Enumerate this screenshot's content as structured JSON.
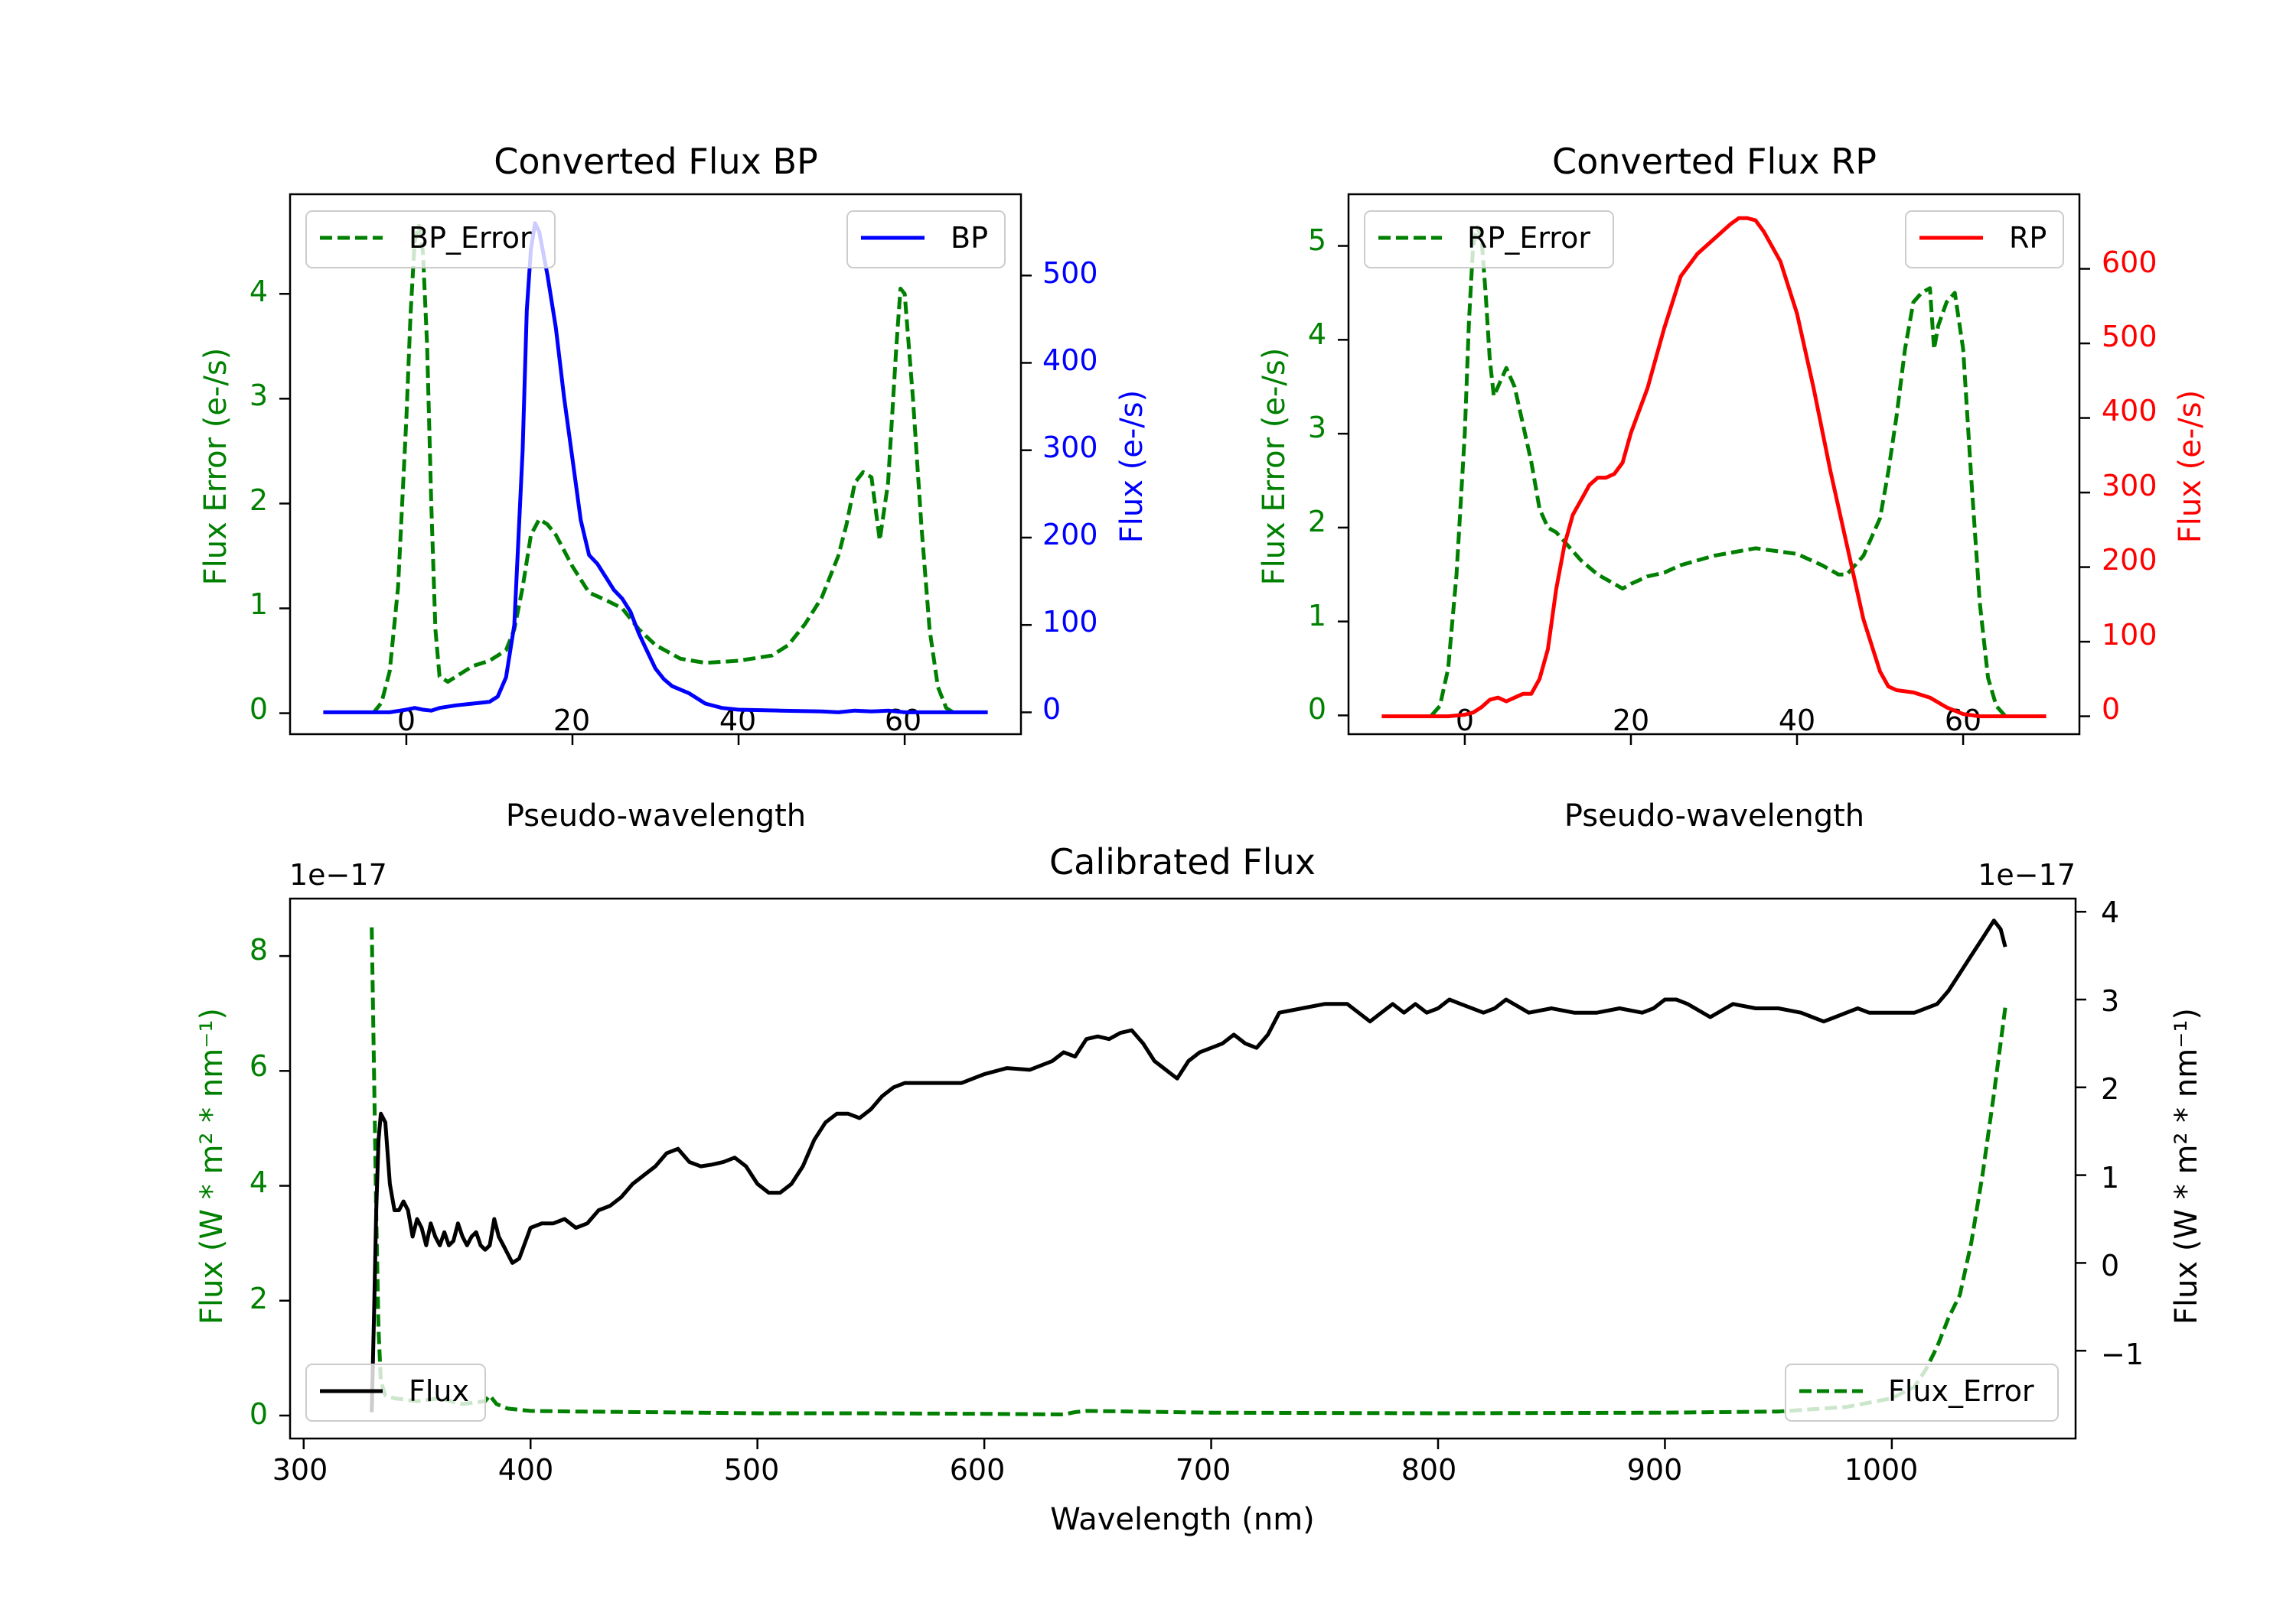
{
  "colors": {
    "green": "#008000",
    "blue": "#0000ff",
    "red": "#ff0000",
    "black": "#000000"
  },
  "chart_data": [
    {
      "id": "bp",
      "type": "line",
      "title": "Converted Flux BP",
      "xlabel": "Pseudo-wavelength",
      "ylabel_left": "Flux Error (e-/s)",
      "ylabel_right": "Flux (e-/s)",
      "xlim": [
        -14,
        74
      ],
      "ylim_left": [
        -0.2,
        4.95
      ],
      "ylim_right": [
        -25,
        593
      ],
      "xticks": [
        "0",
        "20",
        "40",
        "60"
      ],
      "yticks_left": [
        "0",
        "1",
        "2",
        "3",
        "4"
      ],
      "yticks_right": [
        "0",
        "100",
        "200",
        "300",
        "400",
        "500"
      ],
      "series": [
        {
          "name": "BP_Error",
          "axis": "left",
          "style": "dashed",
          "color": "#008000",
          "x": [
            -4,
            -3,
            -2,
            -1,
            0,
            0.5,
            1,
            1.5,
            2,
            2.5,
            3,
            3.5,
            4,
            5,
            6,
            7,
            8,
            10,
            12,
            13,
            14,
            15,
            16,
            17,
            18,
            20,
            22,
            24,
            26,
            28,
            30,
            33,
            36,
            40,
            44,
            46,
            48,
            50,
            52,
            53,
            54,
            55,
            56,
            57,
            58,
            59,
            59.5,
            60,
            61,
            62,
            63,
            64,
            65,
            66
          ],
          "y": [
            0,
            0.1,
            0.4,
            1.2,
            2.8,
            3.8,
            4.5,
            4.65,
            4.4,
            3.5,
            2.0,
            0.8,
            0.35,
            0.3,
            0.35,
            0.4,
            0.45,
            0.5,
            0.6,
            0.8,
            1.2,
            1.7,
            1.85,
            1.8,
            1.7,
            1.4,
            1.15,
            1.08,
            1.0,
            0.8,
            0.65,
            0.52,
            0.48,
            0.5,
            0.55,
            0.65,
            0.85,
            1.1,
            1.5,
            1.8,
            2.2,
            2.3,
            2.25,
            1.65,
            2.2,
            3.5,
            4.05,
            4.0,
            3.0,
            1.8,
            0.8,
            0.25,
            0.05,
            0
          ]
        },
        {
          "name": "BP",
          "axis": "right",
          "style": "solid",
          "color": "#0000ff",
          "x": [
            -10,
            -4,
            -2,
            0,
            1,
            2,
            3,
            4,
            6,
            8,
            10,
            11,
            12,
            13,
            14,
            14.5,
            15,
            15.5,
            16,
            17,
            18,
            19,
            20,
            21,
            22,
            23,
            24,
            25,
            26,
            27,
            28,
            29,
            30,
            31,
            32,
            34,
            36,
            38,
            40,
            45,
            50,
            52,
            54,
            56,
            58,
            60,
            64,
            70
          ],
          "y": [
            0,
            0,
            0,
            3,
            5,
            3,
            2,
            5,
            8,
            10,
            12,
            18,
            40,
            100,
            300,
            460,
            530,
            560,
            550,
            500,
            440,
            360,
            290,
            220,
            180,
            170,
            155,
            140,
            130,
            115,
            90,
            70,
            50,
            38,
            30,
            22,
            10,
            5,
            3,
            2,
            1,
            0,
            2,
            1,
            2,
            0,
            0,
            0
          ]
        }
      ],
      "legend": [
        {
          "label": "BP_Error",
          "position": "upper-left"
        },
        {
          "label": "BP",
          "position": "upper-right"
        }
      ]
    },
    {
      "id": "rp",
      "type": "line",
      "title": "Converted Flux RP",
      "xlabel": "Pseudo-wavelength",
      "ylabel_left": "Flux Error (e-/s)",
      "ylabel_right": "Flux (e-/s)",
      "xlim": [
        -14,
        74
      ],
      "ylim_left": [
        -0.2,
        5.55
      ],
      "ylim_right": [
        -24,
        700
      ],
      "xticks": [
        "0",
        "20",
        "40",
        "60"
      ],
      "yticks_left": [
        "0",
        "1",
        "2",
        "3",
        "4",
        "5"
      ],
      "yticks_right": [
        "0",
        "100",
        "200",
        "300",
        "400",
        "500",
        "600"
      ],
      "series": [
        {
          "name": "RP_Error",
          "axis": "left",
          "style": "dashed",
          "color": "#008000",
          "x": [
            -4,
            -3,
            -2,
            -1,
            0,
            0.5,
            1,
            1.5,
            2,
            2.5,
            3,
            3.5,
            4,
            5,
            6,
            7,
            8,
            9,
            10,
            11,
            12,
            14,
            16,
            18,
            19,
            20,
            22,
            24,
            26,
            30,
            35,
            40,
            43,
            45,
            46,
            48,
            50,
            51,
            52,
            53,
            54,
            55,
            56,
            56.5,
            57,
            58,
            59,
            60,
            61,
            62,
            63,
            64,
            65
          ],
          "y": [
            0,
            0.1,
            0.5,
            1.5,
            3.0,
            4.2,
            5.0,
            5.2,
            5.1,
            4.5,
            3.8,
            3.4,
            3.5,
            3.7,
            3.5,
            3.1,
            2.7,
            2.2,
            2.0,
            1.95,
            1.85,
            1.65,
            1.5,
            1.4,
            1.35,
            1.4,
            1.48,
            1.52,
            1.6,
            1.7,
            1.78,
            1.72,
            1.6,
            1.5,
            1.5,
            1.7,
            2.1,
            2.6,
            3.2,
            3.9,
            4.4,
            4.5,
            4.55,
            3.9,
            4.15,
            4.4,
            4.5,
            3.9,
            2.5,
            1.2,
            0.4,
            0.1,
            0
          ]
        },
        {
          "name": "RP",
          "axis": "right",
          "style": "solid",
          "color": "#ff0000",
          "x": [
            -10,
            -4,
            -2,
            0,
            1,
            2,
            3,
            4,
            5,
            6,
            7,
            8,
            9,
            10,
            11,
            12,
            13,
            14,
            15,
            16,
            17,
            18,
            19,
            20,
            22,
            24,
            26,
            28,
            30,
            32,
            33,
            34,
            35,
            36,
            38,
            40,
            42,
            44,
            46,
            48,
            50,
            51,
            52,
            54,
            56,
            58,
            60,
            62,
            64,
            70
          ],
          "y": [
            0,
            0,
            0,
            2,
            5,
            12,
            22,
            25,
            20,
            25,
            30,
            30,
            50,
            90,
            170,
            230,
            270,
            290,
            310,
            320,
            320,
            325,
            340,
            380,
            440,
            520,
            590,
            620,
            640,
            660,
            668,
            668,
            665,
            650,
            610,
            540,
            440,
            330,
            230,
            130,
            60,
            40,
            35,
            32,
            25,
            12,
            3,
            0,
            0,
            0
          ]
        }
      ],
      "legend": [
        {
          "label": "RP_Error",
          "position": "upper-left"
        },
        {
          "label": "RP",
          "position": "upper-right"
        }
      ]
    },
    {
      "id": "cal",
      "type": "line",
      "title": "Calibrated Flux",
      "xlabel": "Wavelength (nm)",
      "ylabel_left": "Flux (W * m² * nm⁻¹)",
      "ylabel_right": "Flux (W * m² * nm⁻¹)",
      "offset_left": "1e−17",
      "offset_right": "1e−17",
      "xlim": [
        294,
        1081
      ],
      "ylim_left": [
        -0.4,
        9.0
      ],
      "ylim_right": [
        -2.0,
        4.15
      ],
      "xticks": [
        "300",
        "400",
        "500",
        "600",
        "700",
        "800",
        "900",
        "1000"
      ],
      "yticks_left": [
        "0",
        "2",
        "4",
        "6",
        "8"
      ],
      "yticks_right": [
        "−1",
        "0",
        "1",
        "2",
        "3",
        "4"
      ],
      "series": [
        {
          "name": "Flux_Error",
          "axis": "left",
          "style": "dashed",
          "color": "#008000",
          "x": [
            330,
            331,
            332,
            333,
            334,
            336,
            340,
            350,
            360,
            370,
            380,
            382,
            385,
            390,
            400,
            420,
            450,
            500,
            550,
            600,
            635,
            640,
            645,
            700,
            800,
            900,
            950,
            980,
            1000,
            1010,
            1015,
            1020,
            1025,
            1030,
            1035,
            1040,
            1045,
            1050
          ],
          "y": [
            8.5,
            6.0,
            3.5,
            1.5,
            0.6,
            0.35,
            0.3,
            0.25,
            0.3,
            0.2,
            0.25,
            0.35,
            0.2,
            0.12,
            0.08,
            0.07,
            0.06,
            0.04,
            0.04,
            0.03,
            0.02,
            0.06,
            0.08,
            0.05,
            0.04,
            0.05,
            0.07,
            0.15,
            0.3,
            0.5,
            0.8,
            1.2,
            1.7,
            2.1,
            3.0,
            4.2,
            5.6,
            7.1
          ]
        },
        {
          "name": "Flux",
          "axis": "right",
          "style": "solid",
          "color": "#000000",
          "x": [
            330,
            331,
            332,
            333,
            334,
            336,
            338,
            340,
            342,
            344,
            346,
            348,
            350,
            352,
            354,
            356,
            358,
            360,
            362,
            364,
            366,
            368,
            370,
            372,
            374,
            376,
            378,
            380,
            382,
            384,
            386,
            388,
            390,
            392,
            395,
            400,
            405,
            410,
            415,
            420,
            425,
            430,
            435,
            440,
            445,
            450,
            455,
            460,
            465,
            470,
            475,
            480,
            485,
            490,
            495,
            500,
            505,
            510,
            515,
            520,
            525,
            530,
            535,
            540,
            545,
            550,
            555,
            560,
            565,
            570,
            580,
            590,
            600,
            610,
            620,
            630,
            635,
            640,
            645,
            650,
            655,
            660,
            665,
            670,
            675,
            680,
            685,
            690,
            695,
            700,
            705,
            710,
            715,
            720,
            725,
            730,
            740,
            750,
            760,
            765,
            770,
            775,
            780,
            785,
            790,
            795,
            800,
            805,
            810,
            820,
            825,
            830,
            840,
            850,
            860,
            870,
            880,
            890,
            895,
            900,
            905,
            910,
            920,
            930,
            940,
            950,
            960,
            965,
            970,
            975,
            980,
            985,
            990,
            1000,
            1010,
            1020,
            1025,
            1030,
            1035,
            1040,
            1045,
            1048,
            1050
          ],
          "y": [
            -1.7,
            -0.6,
            0.6,
            1.4,
            1.7,
            1.6,
            0.9,
            0.6,
            0.6,
            0.7,
            0.6,
            0.3,
            0.5,
            0.4,
            0.2,
            0.45,
            0.3,
            0.2,
            0.35,
            0.2,
            0.25,
            0.45,
            0.3,
            0.2,
            0.3,
            0.35,
            0.2,
            0.15,
            0.2,
            0.5,
            0.3,
            0.2,
            0.1,
            0.0,
            0.05,
            0.4,
            0.45,
            0.45,
            0.5,
            0.4,
            0.45,
            0.6,
            0.65,
            0.75,
            0.9,
            1.0,
            1.1,
            1.25,
            1.3,
            1.15,
            1.1,
            1.12,
            1.15,
            1.2,
            1.1,
            0.9,
            0.8,
            0.8,
            0.9,
            1.1,
            1.4,
            1.6,
            1.7,
            1.7,
            1.65,
            1.75,
            1.9,
            2.0,
            2.05,
            2.05,
            2.05,
            2.05,
            2.15,
            2.22,
            2.2,
            2.3,
            2.4,
            2.35,
            2.55,
            2.58,
            2.55,
            2.62,
            2.65,
            2.5,
            2.3,
            2.2,
            2.1,
            2.3,
            2.4,
            2.45,
            2.5,
            2.6,
            2.5,
            2.45,
            2.6,
            2.85,
            2.9,
            2.95,
            2.95,
            2.85,
            2.75,
            2.85,
            2.95,
            2.85,
            2.95,
            2.85,
            2.9,
            3.0,
            2.95,
            2.85,
            2.9,
            3.0,
            2.85,
            2.9,
            2.85,
            2.85,
            2.9,
            2.85,
            2.9,
            3.0,
            3.0,
            2.95,
            2.8,
            2.95,
            2.9,
            2.9,
            2.85,
            2.8,
            2.75,
            2.8,
            2.85,
            2.9,
            2.85,
            2.85,
            2.85,
            2.95,
            3.1,
            3.3,
            3.5,
            3.7,
            3.9,
            3.8,
            3.6
          ]
        }
      ],
      "legend": [
        {
          "label": "Flux",
          "position": "lower-left"
        },
        {
          "label": "Flux_Error",
          "position": "lower-right"
        }
      ]
    }
  ]
}
